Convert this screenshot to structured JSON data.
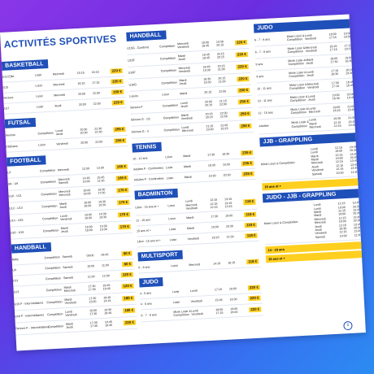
{
  "page": {
    "title": "ACTIVITÉS SPORTIVES",
    "page_number": "5"
  },
  "colors": {
    "heading_blue": "#1f4fb8",
    "price_yellow": "#ffcf1f"
  },
  "col1": [
    {
      "header": "BASKETBALL",
      "rows": [
        {
          "name": "U13 Élite",
          "type": "Loisir",
          "day": "Mercredi",
          "start": "15:15",
          "end": "16:15",
          "price": "220 €"
        },
        {
          "name": "U15",
          "type": "Loisir",
          "day": "Mercredi",
          "start": "16:15",
          "end": "17:15",
          "price": "220 €"
        },
        {
          "name": "Seniors",
          "type": "Loisir",
          "day": "Mercredi",
          "start": "20:00",
          "end": "22:00",
          "price": "150 €"
        },
        {
          "name": "U17",
          "type": "Loisir",
          "day": "Jeudi",
          "start": "20:00",
          "end": "22:00",
          "price": "220 €"
        }
      ]
    },
    {
      "header": "FUTSAL",
      "rows": [
        {
          "name": "Seniors",
          "type": "Compétition",
          "day": "Lundi\nJeudi",
          "start": "20:30\n20:30",
          "end": "22:30\n22:30",
          "price": "255 €"
        },
        {
          "name": "Vétérans",
          "type": "Loisir",
          "day": "Vendredi",
          "start": "20:00",
          "end": "22:00",
          "price": "255 €"
        }
      ]
    },
    {
      "header": "FOOTBALL",
      "rows": [
        {
          "name": "U7",
          "type": "Compétition",
          "day": "Mercredi",
          "start": "13:30",
          "end": "14:30",
          "price": "165 €"
        },
        {
          "name": "U8 - U9",
          "type": "Compétition",
          "day": "Mercredi\nSamedi",
          "start": "14:45\n10:00",
          "end": "15:45\n11:30",
          "price": "165 €"
        },
        {
          "name": "U10 - U11",
          "type": "Compétition",
          "day": "Mercredi\nMercredi",
          "start": "18:00\n16:00",
          "end": "19:30\n17:00",
          "price": "170 €"
        },
        {
          "name": "U12 - U13",
          "type": "Compétition",
          "day": "Mardi\nJeudi",
          "start": "18:00\n18:00",
          "end": "19:30\n19:30",
          "price": "170 €"
        },
        {
          "name": "U14 - U15",
          "type": "Compétition",
          "day": "Lundi\nVendredi",
          "start": "18:00\n18:00",
          "end": "19:30\n19:30",
          "price": "170 €"
        },
        {
          "name": "U16 - U18",
          "type": "Compétition",
          "day": "Mardi\nJeudi",
          "start": "18:00\n18:00",
          "end": "19:30\n19:30",
          "price": "170 €"
        }
      ]
    },
    {
      "header": "HANDBALL",
      "rows": [
        {
          "name": "Baby",
          "type": "Compétition",
          "day": "Samedi",
          "start": "09:00",
          "end": "09:45",
          "price": "80 €"
        },
        {
          "name": "U9",
          "type": "Compétition",
          "day": "Samedi",
          "start": "10:00",
          "end": "11:00",
          "price": "80 €"
        },
        {
          "name": "U11",
          "type": "Compétition",
          "day": "Samedi",
          "start": "11:00",
          "end": "12:00",
          "price": "120 €"
        },
        {
          "name": "U13",
          "type": "Compétition",
          "day": "Mardi\nMercredi",
          "start": "17:30\n17:30",
          "end": "18:45\n18:45",
          "price": "120 €"
        },
        {
          "name": "U15 F - Intermédiaires",
          "type": "Compétition",
          "day": "Mardi\nVendredi",
          "start": "17:30\n13:00",
          "end": "18:45\n14:15",
          "price": "180 €"
        },
        {
          "name": "U18 F - Intermédiaires",
          "type": "Compétition",
          "day": "Lundi\nVendredi",
          "start": "15:00\n17:30",
          "end": "16:30\n18:45",
          "price": "180 €"
        },
        {
          "name": "Seniors F - Intermédiaires",
          "type": "Compétition",
          "day": "Mardi\nJeudi",
          "start": "17:30\n17:30",
          "end": "18:45\n18:45",
          "price": "220 €"
        }
      ]
    }
  ],
  "col2": [
    {
      "header": "HANDBALL",
      "rows": [
        {
          "name": "U15G - Confirmé",
          "type": "Compétition",
          "day": "Mercredi\nVendredi",
          "start": "18:00\n18:45",
          "end": "19:30\n20:15",
          "price": "220 €"
        },
        {
          "name": "U15F",
          "type": "Compétition",
          "day": "Mardi\nJeudi",
          "start": "18:45\n18:45",
          "end": "20:15\n20:15",
          "price": "220 €"
        },
        {
          "name": "U18F",
          "type": "Compétition",
          "day": "Mercredi\nVendredi",
          "start": "18:45\n19:30",
          "end": "20:15\n21:00",
          "price": "220 €"
        },
        {
          "name": "U18G",
          "type": "Compétition",
          "day": "Mardi\nJeudi",
          "start": "18:30\n19:30",
          "end": "20:15\n21:00",
          "price": "220 €"
        },
        {
          "name": "Loisirs",
          "type": "Loisir",
          "day": "Mardi",
          "start": "20:15",
          "end": "22:00",
          "price": "200 €"
        },
        {
          "name": "Séniors F",
          "type": "Compétition",
          "day": "Lundi\nJeudi",
          "start": "20:00\n20:15",
          "end": "21:15\n22:00",
          "price": "250 €"
        },
        {
          "name": "Séniors G - 1/2",
          "type": "Compétition",
          "day": "Mardi\nVendredi",
          "start": "20:15\n20:15",
          "end": "22:00\n22:00",
          "price": "250 €"
        },
        {
          "name": "Séniors G - 3",
          "type": "Compétition",
          "day": "Lundi\nMercredi",
          "start": "21:15\n19:00",
          "end": "22:00\n20:15",
          "price": "250 €"
        }
      ]
    },
    {
      "header": "TENNIS",
      "rows": [
        {
          "name": "10 - 12 ans",
          "type": "Loisir",
          "day": "Mardi",
          "start": "17:30",
          "end": "18:30",
          "price": "235 €"
        },
        {
          "name": "Adultes F - Confirmées",
          "type": "Loisir",
          "day": "Mardi",
          "start": "18:30",
          "end": "19:30",
          "price": "235 €"
        },
        {
          "name": "Adultes F - Confirmées",
          "type": "Loisir",
          "day": "Mardi",
          "start": "19:30",
          "end": "20:30",
          "price": "235 €"
        }
      ]
    },
    {
      "header": "BADMINTON",
      "rows": [
        {
          "name": "Libre - 15 ans et +",
          "type": "Loisir",
          "day": "Lundi\nMercredi\nVendredi",
          "start": "12:15\n12:15\n12:15",
          "end": "13:15\n13:15\n13:15",
          "price": "118 €"
        },
        {
          "name": "11 - 15 ans",
          "type": "Loisir",
          "day": "Mardi",
          "start": "17:30",
          "end": "19:00",
          "price": "118 €"
        },
        {
          "name": "15 ans et +",
          "type": "Loisir",
          "day": "Mardi",
          "start": "19:00",
          "end": "20:30",
          "price": "118 €"
        },
        {
          "name": "Libre - 15 ans et +",
          "type": "Loisir",
          "day": "Vendredi",
          "start": "18:15",
          "end": "21:00",
          "price": "118 €"
        }
      ]
    },
    {
      "header": "MULTISPORT",
      "rows": [
        {
          "name": "6 - 8 ans",
          "type": "Loisir",
          "day": "Mercredi",
          "start": "14:10",
          "end": "16:15",
          "price": "118 €"
        }
      ]
    },
    {
      "header": "JUDO",
      "rows": [
        {
          "name": "4 - 5 ans",
          "type": "Loisir",
          "day": "Lundi",
          "start": "17:15",
          "end": "18:00",
          "price": "220 €"
        },
        {
          "name": "4 - 5 ans",
          "type": "Loisir",
          "day": "Vendredi",
          "start": "15:45",
          "end": "16:30",
          "price": "220 €"
        },
        {
          "name": "6 - 7 - 8 ans",
          "type": "Mixte Loisir &\nCompétition",
          "day": "Lundi\nVendredi",
          "start": "18:00\n17:15",
          "end": "19:00\n18:00",
          "price": "220 €"
        }
      ]
    }
  ],
  "col3": [
    {
      "header": "JUDO",
      "rows": [
        {
          "name": "6 - 7 - 8 ans",
          "type": "Mixte Loisir &\nCompétition",
          "day": "Lundi\nVendredi",
          "start": "18:00\n17:15",
          "end": "19:00\n18:00",
          "price": "220 €"
        },
        {
          "name": "6 - 7 - 8 ans",
          "type": "Mixte Loisir &\nCompétition",
          "day": "Mercredi\nVendredi",
          "start": "16:15\n17:15",
          "end": "17:15\n18:15",
          "price": "220 €"
        },
        {
          "name": "9 ans",
          "type": "Mixte Loisir &\nCompétition",
          "day": "Mardi\nJeudi",
          "start": "18:00\n17:30",
          "end": "19:00\n18:30",
          "price": "220 €"
        },
        {
          "name": "9 ans",
          "type": "Mixte Loisir &\nCompétition",
          "day": "Lundi\nJeudi",
          "start": "17:15\n18:30",
          "end": "18:15\n19:30",
          "price": "220 €"
        },
        {
          "name": "10 - 11 ans",
          "type": "Mixte Loisir &\nCompétition",
          "day": "Mercredi\nVendredi",
          "start": "17:30\n17:15",
          "end": "18:45\n18:45",
          "price": "220 €"
        },
        {
          "name": "10 - 11 ans",
          "type": "Mixte Loisir &\nCompétition",
          "day": "Lundi\nJeudi",
          "start": "19:00\n18:30",
          "end": "20:00\n19:45",
          "price": "220 €"
        },
        {
          "name": "12 - 15 ans",
          "type": "Mixte Loisir &\nCompétition",
          "day": "Lundi\nMercredi",
          "start": "19:00\n18:15",
          "end": "21:00\n19:45",
          "price": "220 €"
        },
        {
          "name": "Adultes",
          "type": "Mixte Loisir &\nCompétition",
          "day": "Lundi\nMardi\nMercredi",
          "start": "19:30\n12:15\n12:15",
          "end": "21:30\n13:45\n13:45",
          "price": "220 €"
        }
      ]
    },
    {
      "header": "JJB - GRAPPLING",
      "rows": [
        {
          "name": "Mixte Loisir & Compétition",
          "type": "",
          "day": "Lundi\nLundi\nMardi\nMardi\nMercredi\nJeudi\nVendredi\nSamedi",
          "start": "12:15\n19:00\n12:15\n19:00\n12:15\n12:15\n12:15\n10:00",
          "end": "13:45\n20:30\n13:45\n20:30\n13:45\n13:45\n13:45\n11:30",
          "price": ""
        }
      ],
      "gold": [
        "15 ans et +"
      ]
    },
    {
      "header": "JUDO - JJB - GRAPPLING",
      "rows": [
        {
          "name": "Mixte Loisir & Compétition",
          "type": "",
          "day": "Lundi\nLundi\nMardi\nMardi\nMercredi\nMercredi\nJeudi\nJeudi\nVendredi\nSamedi",
          "start": "12:15\n19:00\n12:15\n19:00\n12:15\n19:00\n12:15\n18:30\n12:15\n10:00",
          "end": "13:45\n20:30\n13:45\n20:30\n13:45\n20:30\n13:45\n20:00\n13:45\n11:30",
          "price": ""
        }
      ],
      "gold": [
        "14 - 18 ans",
        "15 ans et +"
      ]
    }
  ]
}
